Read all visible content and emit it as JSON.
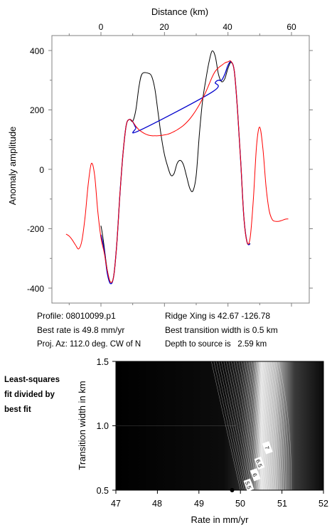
{
  "top_chart": {
    "type": "line",
    "xlabel": "Distance (km)",
    "ylabel": "Anomaly amplitude",
    "xlim": [
      -10,
      66
    ],
    "ylim": [
      -410,
      440
    ],
    "x_ticks": [
      "0",
      "20",
      "40",
      "60"
    ],
    "y_ticks": [
      "400",
      "200",
      "0",
      "-200",
      "-400"
    ],
    "x_tick_values": [
      0,
      20,
      40,
      60
    ],
    "y_tick_values": [
      400,
      200,
      0,
      -200,
      -400
    ],
    "series": [
      {
        "color": "#000000",
        "points": [
          [
            0,
            -190
          ],
          [
            0.5,
            -220
          ],
          [
            1,
            -260
          ],
          [
            2,
            -340
          ],
          [
            3,
            -380
          ],
          [
            4,
            -360
          ],
          [
            5,
            -250
          ],
          [
            6,
            -80
          ],
          [
            7,
            60
          ],
          [
            8,
            150
          ],
          [
            9,
            168
          ],
          [
            10,
            162
          ],
          [
            11,
            200
          ],
          [
            12,
            280
          ],
          [
            13,
            322
          ],
          [
            15,
            323
          ],
          [
            16,
            312
          ],
          [
            17,
            270
          ],
          [
            18,
            190
          ],
          [
            19,
            110
          ],
          [
            20,
            50
          ],
          [
            21,
            10
          ],
          [
            22,
            -20
          ],
          [
            23,
            -15
          ],
          [
            24,
            20
          ],
          [
            25,
            30
          ],
          [
            26,
            15
          ],
          [
            27,
            -25
          ],
          [
            28,
            -65
          ],
          [
            29,
            -72
          ],
          [
            30,
            -20
          ],
          [
            31,
            120
          ],
          [
            32,
            230
          ],
          [
            33,
            300
          ],
          [
            34,
            360
          ],
          [
            35,
            398
          ],
          [
            36,
            380
          ],
          [
            37,
            320
          ],
          [
            38,
            295
          ],
          [
            39,
            305
          ],
          [
            40,
            340
          ],
          [
            41,
            360
          ],
          [
            42,
            330
          ],
          [
            43,
            200
          ],
          [
            44,
            30
          ],
          [
            45,
            -160
          ],
          [
            46,
            -245
          ],
          [
            47,
            -250
          ]
        ]
      },
      {
        "color": "#0000cc",
        "points": [
          [
            0,
            -220
          ],
          [
            1,
            -270
          ],
          [
            2,
            -350
          ],
          [
            3,
            -385
          ],
          [
            4,
            -360
          ],
          [
            5,
            -250
          ],
          [
            6,
            -80
          ],
          [
            7,
            60
          ],
          [
            8,
            150
          ],
          [
            9,
            168
          ],
          [
            10,
            160
          ],
          [
            11,
            140
          ],
          [
            12,
            130
          ],
          [
            35,
            260
          ],
          [
            36,
            292
          ],
          [
            37,
            300
          ],
          [
            38,
            300
          ],
          [
            39,
            320
          ],
          [
            40,
            350
          ],
          [
            41,
            362
          ],
          [
            42,
            330
          ],
          [
            43,
            200
          ],
          [
            44,
            30
          ],
          [
            45,
            -160
          ],
          [
            46,
            -245
          ],
          [
            47,
            -252
          ]
        ]
      },
      {
        "color": "#ff0000",
        "points": [
          [
            -11,
            -218
          ],
          [
            -10,
            -225
          ],
          [
            -9,
            -238
          ],
          [
            -8,
            -255
          ],
          [
            -7,
            -268
          ],
          [
            -6,
            -240
          ],
          [
            -5,
            -160
          ],
          [
            -4,
            -50
          ],
          [
            -3,
            20
          ],
          [
            -2,
            -20
          ],
          [
            -1,
            -140
          ],
          [
            0,
            -230
          ],
          [
            1,
            -280
          ],
          [
            2,
            -340
          ],
          [
            3,
            -380
          ],
          [
            4,
            -360
          ],
          [
            5,
            -250
          ],
          [
            6,
            -80
          ],
          [
            7,
            60
          ],
          [
            8,
            150
          ],
          [
            9,
            168
          ],
          [
            10,
            160
          ],
          [
            11,
            145
          ],
          [
            12,
            133
          ],
          [
            13,
            125
          ],
          [
            14,
            119
          ],
          [
            15,
            115
          ],
          [
            16,
            113
          ],
          [
            17,
            113
          ],
          [
            18,
            113
          ],
          [
            19,
            114
          ],
          [
            20,
            116
          ],
          [
            21,
            118
          ],
          [
            22,
            122
          ],
          [
            23,
            127
          ],
          [
            24,
            133
          ],
          [
            25,
            140
          ],
          [
            26,
            148
          ],
          [
            27,
            158
          ],
          [
            28,
            170
          ],
          [
            29,
            184
          ],
          [
            30,
            200
          ],
          [
            31,
            218
          ],
          [
            32,
            238
          ],
          [
            33,
            260
          ],
          [
            34,
            285
          ],
          [
            35,
            310
          ],
          [
            36,
            330
          ],
          [
            37,
            342
          ],
          [
            38,
            350
          ],
          [
            39,
            358
          ],
          [
            40,
            362
          ],
          [
            41,
            363
          ],
          [
            42,
            330
          ],
          [
            43,
            200
          ],
          [
            44,
            30
          ],
          [
            45,
            -160
          ],
          [
            46,
            -245
          ],
          [
            47,
            -230
          ],
          [
            48,
            -100
          ],
          [
            49,
            80
          ],
          [
            50,
            142
          ],
          [
            51,
            70
          ],
          [
            52,
            -60
          ],
          [
            53,
            -140
          ],
          [
            54,
            -170
          ],
          [
            55,
            -175
          ],
          [
            56,
            -175
          ],
          [
            57,
            -172
          ],
          [
            58,
            -168
          ],
          [
            59,
            -167
          ]
        ]
      }
    ]
  },
  "info": {
    "profile": "Profile: 08010099.p1",
    "best_rate": "Best rate is 49.8 mm/yr",
    "proj_az": "Proj. Az: 112.0 deg. CW of N",
    "ridge_xing": "Ridge Xing is 42.67 -126.78",
    "best_width": "Best transition width is 0.5 km",
    "depth": "Depth to source is   2.59 km"
  },
  "side_note": {
    "line1": "Least-squares",
    "line2": "fit divided by",
    "line3": "best fit"
  },
  "bottom_chart": {
    "type": "heatmap",
    "xlabel": "Rate in mm/yr",
    "ylabel": "Transition width in km",
    "xlim": [
      47,
      52
    ],
    "ylim": [
      0.5,
      1.5
    ],
    "x_ticks": [
      "47",
      "48",
      "49",
      "50",
      "51",
      "52"
    ],
    "y_ticks": [
      "1.5",
      "1.0",
      "0.5"
    ],
    "x_tick_values": [
      47,
      48,
      49,
      50,
      51,
      52
    ],
    "y_tick_values": [
      1.5,
      1.0,
      0.5
    ],
    "contour_labels": [
      {
        "text": "7",
        "x": 50.65,
        "y": 0.83
      },
      {
        "text": "6.5",
        "x": 50.46,
        "y": 0.71
      },
      {
        "text": "6",
        "x": 50.36,
        "y": 0.62
      },
      {
        "text": "5.5",
        "x": 50.2,
        "y": 0.54
      }
    ],
    "best_fit": {
      "rate": 49.8,
      "width": 0.5
    }
  }
}
